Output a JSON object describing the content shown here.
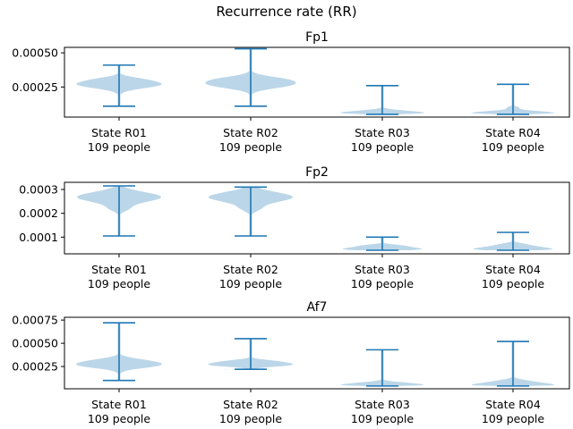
{
  "title": "Recurrence rate (RR)",
  "chart_data": [
    {
      "type": "violin",
      "title": "Fp1",
      "categories": [
        "State R01\n109 people",
        "State R02\n109 people",
        "State R03\n109 people",
        "State R04\n109 people"
      ],
      "category_lines": [
        [
          "State R01",
          "109 people"
        ],
        [
          "State R02",
          "109 people"
        ],
        [
          "State R03",
          "109 people"
        ],
        [
          "State R04",
          "109 people"
        ]
      ],
      "ylim": [
        3e-05,
        0.00054
      ],
      "yticks": [
        0.0005,
        0.00025
      ],
      "ytick_labels": [
        "0.00050",
        "0.00025"
      ],
      "series": [
        {
          "min": 0.00011,
          "max": 0.00041,
          "mode": 0.00027,
          "halfwidth": 0.32,
          "lower_spread": 4e-05,
          "upper_spread": 4e-05,
          "bulge_width": 0.07,
          "bulge_at": 0.00031
        },
        {
          "min": 0.00011,
          "max": 0.00053,
          "mode": 0.00027,
          "halfwidth": 0.32,
          "lower_spread": 4e-05,
          "upper_spread": 5e-05,
          "bulge_width": 0.1,
          "bulge_at": 0.00031
        },
        {
          "min": 5e-05,
          "max": 0.00026,
          "mode": 6e-05,
          "halfwidth": 0.32,
          "lower_spread": 1e-05,
          "upper_spread": 2e-05,
          "bulge_width": 0.04,
          "bulge_at": 8e-05
        },
        {
          "min": 5e-05,
          "max": 0.00027,
          "mode": 6e-05,
          "halfwidth": 0.32,
          "lower_spread": 1e-05,
          "upper_spread": 2e-05,
          "bulge_width": 0.04,
          "bulge_at": 0.0001
        }
      ]
    },
    {
      "type": "violin",
      "title": "Fp2",
      "categories": [
        "State R01\n109 people",
        "State R02\n109 people",
        "State R03\n109 people",
        "State R04\n109 people"
      ],
      "category_lines": [
        [
          "State R01",
          "109 people"
        ],
        [
          "State R02",
          "109 people"
        ],
        [
          "State R03",
          "109 people"
        ],
        [
          "State R04",
          "109 people"
        ]
      ],
      "ylim": [
        3e-05,
        0.00033
      ],
      "yticks": [
        0.0003,
        0.0002,
        0.0001
      ],
      "ytick_labels": [
        "0.0003",
        "0.0002",
        "0.0001"
      ],
      "series": [
        {
          "min": 0.000105,
          "max": 0.000315,
          "mode": 0.000268,
          "halfwidth": 0.32,
          "lower_spread": 3e-05,
          "upper_spread": 3e-05,
          "bulge_width": 0.06,
          "bulge_at": 0.00022
        },
        {
          "min": 0.000105,
          "max": 0.00031,
          "mode": 0.000268,
          "halfwidth": 0.32,
          "lower_spread": 3e-05,
          "upper_spread": 3e-05,
          "bulge_width": 0.06,
          "bulge_at": 0.00022
        },
        {
          "min": 4.5e-05,
          "max": 0.0001,
          "mode": 5e-05,
          "halfwidth": 0.3,
          "lower_spread": 8e-06,
          "upper_spread": 1.2e-05,
          "bulge_width": 0.1,
          "bulge_at": 6.5e-05
        },
        {
          "min": 4.5e-05,
          "max": 0.00012,
          "mode": 5e-05,
          "halfwidth": 0.3,
          "lower_spread": 8e-06,
          "upper_spread": 1.5e-05,
          "bulge_width": 0.06,
          "bulge_at": 7e-05
        }
      ]
    },
    {
      "type": "violin",
      "title": "Af7",
      "categories": [
        "State R01\n109 people",
        "State R02\n109 people",
        "State R03\n109 people",
        "State R04\n109 people"
      ],
      "category_lines": [
        [
          "State R01",
          "109 people"
        ],
        [
          "State R02",
          "109 people"
        ],
        [
          "State R03",
          "109 people"
        ],
        [
          "State R04",
          "109 people"
        ]
      ],
      "ylim": [
        1e-05,
        0.00078
      ],
      "yticks": [
        0.00075,
        0.0005,
        0.00025
      ],
      "ytick_labels": [
        "0.00075",
        "0.00050",
        "0.00025"
      ],
      "series": [
        {
          "min": 0.0001,
          "max": 0.00072,
          "mode": 0.00027,
          "halfwidth": 0.32,
          "lower_spread": 5e-05,
          "upper_spread": 6e-05,
          "bulge_width": 0.05,
          "bulge_at": 0.00032
        },
        {
          "min": 0.00022,
          "max": 0.00055,
          "mode": 0.00027,
          "halfwidth": 0.32,
          "lower_spread": 3e-05,
          "upper_spread": 4e-05,
          "bulge_width": 0.08,
          "bulge_at": 0.00031
        },
        {
          "min": 4e-05,
          "max": 0.00043,
          "mode": 5e-05,
          "halfwidth": 0.32,
          "lower_spread": 1e-05,
          "upper_spread": 3e-05,
          "bulge_width": 0.04,
          "bulge_at": 8e-05
        },
        {
          "min": 4e-05,
          "max": 0.00052,
          "mode": 5e-05,
          "halfwidth": 0.32,
          "lower_spread": 1e-05,
          "upper_spread": 4e-05,
          "bulge_width": 0.05,
          "bulge_at": 0.0001
        }
      ]
    }
  ]
}
